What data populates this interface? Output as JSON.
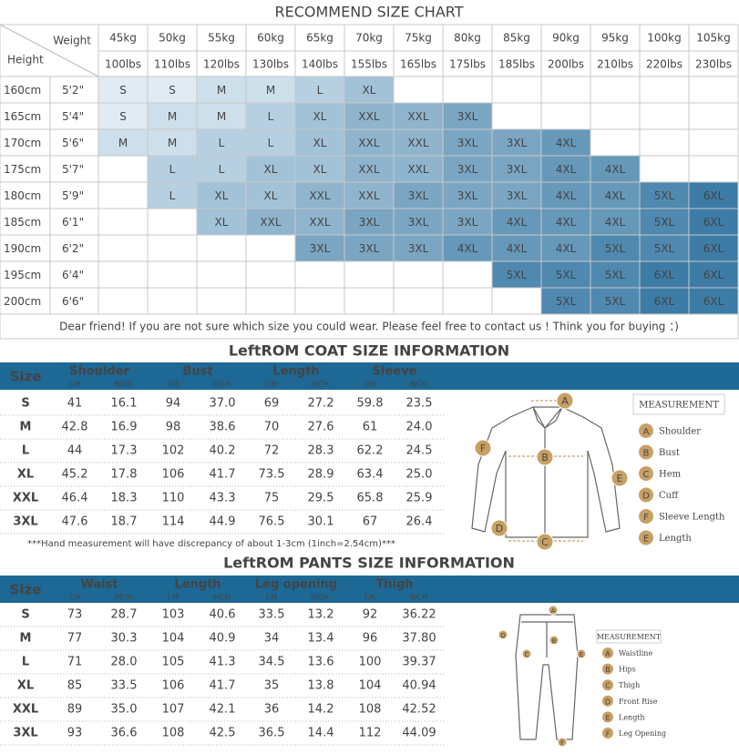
{
  "size_chart": {
    "title": "RECOMMEND SIZE CHART",
    "weight_label": "Weight",
    "height_label": "Height",
    "weights_kg": [
      "45kg",
      "50kg",
      "55kg",
      "60kg",
      "65kg",
      "70kg",
      "75kg",
      "80kg",
      "85kg",
      "90kg",
      "95kg",
      "100kg",
      "105kg"
    ],
    "weights_lbs": [
      "100lbs",
      "110lbs",
      "120lbs",
      "130lbs",
      "140lbs",
      "155lbs",
      "165lbs",
      "175lbs",
      "185lbs",
      "200lbs",
      "210lbs",
      "220lbs",
      "230lbs"
    ],
    "rows": [
      {
        "cm": "160cm",
        "ft": "5'2\"",
        "sizes": [
          "S",
          "S",
          "M",
          "M",
          "L",
          "XL",
          null,
          null,
          null,
          null,
          null,
          null,
          null
        ]
      },
      {
        "cm": "165cm",
        "ft": "5'4\"",
        "sizes": [
          "S",
          "M",
          "M",
          "L",
          "XL",
          "XXL",
          "XXL",
          "3XL",
          null,
          null,
          null,
          null,
          null
        ]
      },
      {
        "cm": "170cm",
        "ft": "5'6\"",
        "sizes": [
          "M",
          "M",
          "L",
          "L",
          "XL",
          "XXL",
          "XXL",
          "3XL",
          "3XL",
          "4XL",
          null,
          null,
          null
        ]
      },
      {
        "cm": "175cm",
        "ft": "5'7\"",
        "sizes": [
          null,
          "L",
          "L",
          "XL",
          "XL",
          "XXL",
          "XXL",
          "3XL",
          "3XL",
          "4XL",
          "4XL",
          null,
          null
        ]
      },
      {
        "cm": "180cm",
        "ft": "5'9\"",
        "sizes": [
          null,
          "L",
          "XL",
          "XL",
          "XXL",
          "XXL",
          "3XL",
          "3XL",
          "3XL",
          "4XL",
          "4XL",
          "5XL",
          "6XL"
        ]
      },
      {
        "cm": "185cm",
        "ft": "6'1\"",
        "sizes": [
          null,
          null,
          "XL",
          "XXL",
          "XXL",
          "3XL",
          "3XL",
          "3XL",
          "4XL",
          "4XL",
          "4XL",
          "5XL",
          "6XL"
        ]
      },
      {
        "cm": "190cm",
        "ft": "6'2\"",
        "sizes": [
          null,
          null,
          null,
          null,
          "3XL",
          "3XL",
          "3XL",
          "4XL",
          "4XL",
          "4XL",
          "5XL",
          "5XL",
          "6XL"
        ]
      },
      {
        "cm": "195cm",
        "ft": "6'4\"",
        "sizes": [
          null,
          null,
          null,
          null,
          null,
          null,
          null,
          null,
          "5XL",
          "5XL",
          "5XL",
          "6XL",
          "6XL"
        ]
      },
      {
        "cm": "200cm",
        "ft": "6'6\"",
        "sizes": [
          null,
          null,
          null,
          null,
          null,
          null,
          null,
          null,
          null,
          "5XL",
          "5XL",
          "6XL",
          "6XL"
        ]
      }
    ],
    "note": "Dear friend! If you are not sure which size you could wear. Please feel free to contact us ! Think you for buying ：)",
    "size_colors": {
      "S": "#e0ebf3",
      "M": "#cddfeb",
      "L": "#b6d0e1",
      "XL": "#a2c2d8",
      "XXL": "#8fb4cd",
      "3XL": "#7ba6c3",
      "4XL": "#6698ba",
      "5XL": "#4f89b0",
      "6XL": "#3d7ca7"
    },
    "size_text_colors": {
      "S": "#666",
      "M": "#666",
      "L": "#fff",
      "XL": "#fff",
      "XXL": "#fff",
      "3XL": "#fff",
      "4XL": "#fff",
      "5XL": "#fff",
      "6XL": "#fff"
    }
  },
  "coat": {
    "title": "LeftROM COAT SIZE INFORMATION",
    "headers": [
      "Size",
      "Shoulder",
      "Bust",
      "Length",
      "Sleeve"
    ],
    "units": [
      "CM",
      "INCH"
    ],
    "rows": [
      {
        "size": "S",
        "values": [
          "41",
          "16.1",
          "94",
          "37.0",
          "69",
          "27.2",
          "59.8",
          "23.5"
        ]
      },
      {
        "size": "M",
        "values": [
          "42.8",
          "16.9",
          "98",
          "38.6",
          "70",
          "27.6",
          "61",
          "24.0"
        ]
      },
      {
        "size": "L",
        "values": [
          "44",
          "17.3",
          "102",
          "40.2",
          "72",
          "28.3",
          "62.2",
          "24.5"
        ]
      },
      {
        "size": "XL",
        "values": [
          "45.2",
          "17.8",
          "106",
          "41.7",
          "73.5",
          "28.9",
          "63.4",
          "25.0"
        ]
      },
      {
        "size": "XXL",
        "values": [
          "46.4",
          "18.3",
          "110",
          "43.3",
          "75",
          "29.5",
          "65.8",
          "25.9"
        ]
      },
      {
        "size": "3XL",
        "values": [
          "47.6",
          "18.7",
          "114",
          "44.9",
          "76.5",
          "30.1",
          "67",
          "26.4"
        ]
      }
    ],
    "note": "***Hand measurement will have discrepancy of about 1-3cm (1inch=2.54cm)***",
    "legend": {
      "title": "MEASUREMENT",
      "items": [
        {
          "letter": "A",
          "label": "Shoulder"
        },
        {
          "letter": "B",
          "label": "Bust"
        },
        {
          "letter": "C",
          "label": "Hem"
        },
        {
          "letter": "D",
          "label": "Cuff"
        },
        {
          "letter": "F",
          "label": "Sleeve Length"
        },
        {
          "letter": "E",
          "label": "Length"
        }
      ]
    }
  },
  "pants": {
    "title": "LeftROM PANTS SIZE INFORMATION",
    "headers": [
      "Size",
      "Waist",
      "Length",
      "Leg opening",
      "Thigh"
    ],
    "units": [
      "CM",
      "INCH"
    ],
    "rows": [
      {
        "size": "S",
        "values": [
          "73",
          "28.7",
          "103",
          "40.6",
          "33.5",
          "13.2",
          "92",
          "36.22"
        ]
      },
      {
        "size": "M",
        "values": [
          "77",
          "30.3",
          "104",
          "40.9",
          "34",
          "13.4",
          "96",
          "37.80"
        ]
      },
      {
        "size": "L",
        "values": [
          "71",
          "28.0",
          "105",
          "41.3",
          "34.5",
          "13.6",
          "100",
          "39.37"
        ]
      },
      {
        "size": "XL",
        "values": [
          "85",
          "33.5",
          "106",
          "41.7",
          "35",
          "13.8",
          "104",
          "40.94"
        ]
      },
      {
        "size": "XXL",
        "values": [
          "89",
          "35.0",
          "107",
          "42.1",
          "36",
          "14.2",
          "108",
          "42.52"
        ]
      },
      {
        "size": "3XL",
        "values": [
          "93",
          "36.6",
          "108",
          "42.5",
          "36.5",
          "14.4",
          "112",
          "44.09"
        ]
      }
    ],
    "legend": {
      "title": "MEASUREMENT",
      "items": [
        {
          "letter": "A",
          "label": "Waistline"
        },
        {
          "letter": "B",
          "label": "Hips"
        },
        {
          "letter": "C",
          "label": "Thigh"
        },
        {
          "letter": "D",
          "label": "Front Rise"
        },
        {
          "letter": "E",
          "label": "Length"
        },
        {
          "letter": "F",
          "label": "Leg Opening"
        }
      ]
    }
  }
}
